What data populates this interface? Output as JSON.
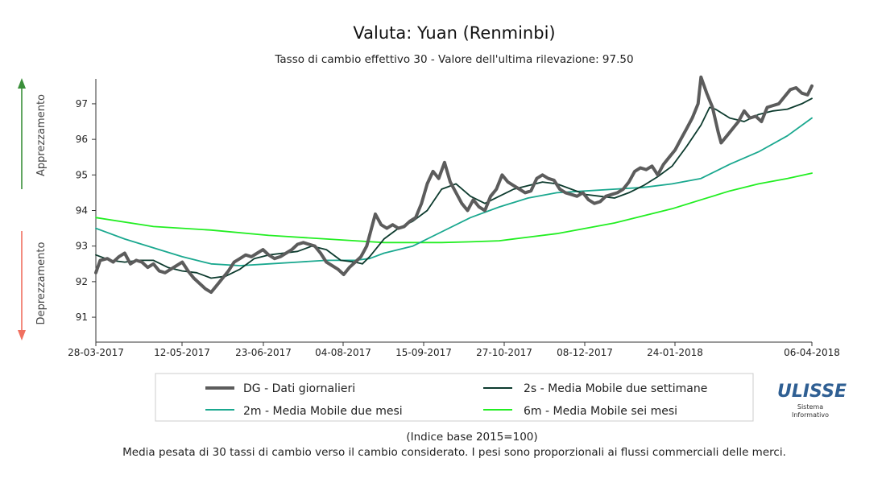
{
  "chart_data": {
    "type": "line",
    "title": "Valuta: Yuan (Renminbi)",
    "subtitle": "Tasso di cambio effettivo 30 - Valore dell'ultima rilevazione: 97.50",
    "ylim": [
      90.3,
      97.7
    ],
    "y_ticks": [
      91,
      92,
      93,
      94,
      95,
      96,
      97
    ],
    "x_tick_labels": [
      "28-03-2017",
      "12-05-2017",
      "23-06-2017",
      "04-08-2017",
      "15-09-2017",
      "27-10-2017",
      "08-12-2017",
      "24-01-2018",
      "06-04-2018"
    ],
    "left_labels": {
      "up": "Apprezzamento",
      "down": "Deprezzamento"
    },
    "colors": {
      "up_arrow": "#3a8f3a",
      "down_arrow": "#f07060"
    },
    "series": [
      {
        "name": "DG - Dati giornalieri",
        "color": "#5c5c5c",
        "points": [
          [
            0,
            92.25
          ],
          [
            3,
            92.6
          ],
          [
            8,
            92.65
          ],
          [
            12,
            92.55
          ],
          [
            16,
            92.7
          ],
          [
            20,
            92.8
          ],
          [
            24,
            92.5
          ],
          [
            28,
            92.6
          ],
          [
            32,
            92.55
          ],
          [
            36,
            92.4
          ],
          [
            40,
            92.5
          ],
          [
            44,
            92.3
          ],
          [
            48,
            92.25
          ],
          [
            52,
            92.35
          ],
          [
            56,
            92.45
          ],
          [
            60,
            92.55
          ],
          [
            64,
            92.3
          ],
          [
            68,
            92.1
          ],
          [
            72,
            91.95
          ],
          [
            76,
            91.8
          ],
          [
            80,
            91.7
          ],
          [
            84,
            91.9
          ],
          [
            88,
            92.1
          ],
          [
            92,
            92.3
          ],
          [
            96,
            92.55
          ],
          [
            100,
            92.65
          ],
          [
            104,
            92.75
          ],
          [
            108,
            92.7
          ],
          [
            112,
            92.8
          ],
          [
            116,
            92.9
          ],
          [
            120,
            92.75
          ],
          [
            124,
            92.65
          ],
          [
            128,
            92.7
          ],
          [
            132,
            92.8
          ],
          [
            136,
            92.9
          ],
          [
            140,
            93.05
          ],
          [
            144,
            93.1
          ],
          [
            148,
            93.05
          ],
          [
            152,
            93.0
          ],
          [
            156,
            92.8
          ],
          [
            160,
            92.55
          ],
          [
            164,
            92.45
          ],
          [
            168,
            92.35
          ],
          [
            172,
            92.2
          ],
          [
            176,
            92.4
          ],
          [
            180,
            92.55
          ],
          [
            184,
            92.7
          ],
          [
            188,
            93.0
          ],
          [
            192,
            93.6
          ],
          [
            194,
            93.9
          ],
          [
            198,
            93.6
          ],
          [
            202,
            93.5
          ],
          [
            206,
            93.6
          ],
          [
            210,
            93.5
          ],
          [
            214,
            93.55
          ],
          [
            218,
            93.7
          ],
          [
            222,
            93.8
          ],
          [
            226,
            94.2
          ],
          [
            230,
            94.75
          ],
          [
            234,
            95.1
          ],
          [
            238,
            94.9
          ],
          [
            242,
            95.35
          ],
          [
            246,
            94.8
          ],
          [
            250,
            94.5
          ],
          [
            254,
            94.2
          ],
          [
            258,
            94.0
          ],
          [
            262,
            94.3
          ],
          [
            266,
            94.1
          ],
          [
            270,
            94.0
          ],
          [
            274,
            94.4
          ],
          [
            278,
            94.6
          ],
          [
            282,
            95.0
          ],
          [
            286,
            94.8
          ],
          [
            290,
            94.7
          ],
          [
            294,
            94.6
          ],
          [
            298,
            94.5
          ],
          [
            302,
            94.55
          ],
          [
            306,
            94.9
          ],
          [
            310,
            95.0
          ],
          [
            314,
            94.9
          ],
          [
            318,
            94.85
          ],
          [
            322,
            94.6
          ],
          [
            326,
            94.5
          ],
          [
            330,
            94.45
          ],
          [
            334,
            94.4
          ],
          [
            338,
            94.5
          ],
          [
            342,
            94.3
          ],
          [
            346,
            94.2
          ],
          [
            350,
            94.25
          ],
          [
            354,
            94.4
          ],
          [
            358,
            94.45
          ],
          [
            362,
            94.5
          ],
          [
            366,
            94.6
          ],
          [
            370,
            94.8
          ],
          [
            374,
            95.1
          ],
          [
            378,
            95.2
          ],
          [
            382,
            95.15
          ],
          [
            386,
            95.25
          ],
          [
            390,
            95.0
          ],
          [
            394,
            95.3
          ],
          [
            398,
            95.5
          ],
          [
            402,
            95.7
          ],
          [
            406,
            96.0
          ],
          [
            410,
            96.3
          ],
          [
            414,
            96.6
          ],
          [
            418,
            97.0
          ],
          [
            420,
            97.75
          ],
          [
            424,
            97.3
          ],
          [
            428,
            96.9
          ],
          [
            432,
            96.2
          ],
          [
            434,
            95.9
          ],
          [
            438,
            96.1
          ],
          [
            442,
            96.3
          ],
          [
            446,
            96.5
          ],
          [
            450,
            96.8
          ],
          [
            454,
            96.6
          ],
          [
            458,
            96.65
          ],
          [
            462,
            96.5
          ],
          [
            466,
            96.9
          ],
          [
            470,
            96.95
          ],
          [
            474,
            97.0
          ],
          [
            478,
            97.2
          ],
          [
            482,
            97.4
          ],
          [
            486,
            97.45
          ],
          [
            490,
            97.3
          ],
          [
            494,
            97.25
          ],
          [
            497,
            97.5
          ]
        ]
      },
      {
        "name": "2s - Media Mobile due settimane",
        "color": "#0d3b2e",
        "points": [
          [
            0,
            92.75
          ],
          [
            10,
            92.6
          ],
          [
            20,
            92.55
          ],
          [
            30,
            92.6
          ],
          [
            40,
            92.6
          ],
          [
            50,
            92.4
          ],
          [
            60,
            92.3
          ],
          [
            70,
            92.25
          ],
          [
            80,
            92.1
          ],
          [
            90,
            92.15
          ],
          [
            100,
            92.35
          ],
          [
            110,
            92.65
          ],
          [
            120,
            92.75
          ],
          [
            130,
            92.8
          ],
          [
            140,
            92.85
          ],
          [
            150,
            93.0
          ],
          [
            160,
            92.9
          ],
          [
            170,
            92.6
          ],
          [
            180,
            92.55
          ],
          [
            185,
            92.5
          ],
          [
            190,
            92.7
          ],
          [
            200,
            93.2
          ],
          [
            210,
            93.5
          ],
          [
            220,
            93.7
          ],
          [
            230,
            94.0
          ],
          [
            240,
            94.6
          ],
          [
            250,
            94.75
          ],
          [
            260,
            94.4
          ],
          [
            270,
            94.2
          ],
          [
            280,
            94.4
          ],
          [
            290,
            94.6
          ],
          [
            300,
            94.7
          ],
          [
            310,
            94.8
          ],
          [
            320,
            94.75
          ],
          [
            330,
            94.6
          ],
          [
            340,
            94.45
          ],
          [
            350,
            94.4
          ],
          [
            360,
            94.35
          ],
          [
            370,
            94.5
          ],
          [
            380,
            94.7
          ],
          [
            390,
            94.95
          ],
          [
            400,
            95.25
          ],
          [
            410,
            95.8
          ],
          [
            420,
            96.4
          ],
          [
            426,
            96.9
          ],
          [
            430,
            96.85
          ],
          [
            440,
            96.6
          ],
          [
            450,
            96.5
          ],
          [
            460,
            96.7
          ],
          [
            470,
            96.8
          ],
          [
            480,
            96.85
          ],
          [
            490,
            97.0
          ],
          [
            497,
            97.15
          ]
        ]
      },
      {
        "name": "2m - Media Mobile due mesi",
        "color": "#1aa88f",
        "points": [
          [
            0,
            93.5
          ],
          [
            20,
            93.2
          ],
          [
            40,
            92.95
          ],
          [
            60,
            92.7
          ],
          [
            80,
            92.5
          ],
          [
            100,
            92.45
          ],
          [
            120,
            92.5
          ],
          [
            140,
            92.55
          ],
          [
            160,
            92.6
          ],
          [
            180,
            92.6
          ],
          [
            190,
            92.65
          ],
          [
            200,
            92.8
          ],
          [
            220,
            93.0
          ],
          [
            240,
            93.4
          ],
          [
            260,
            93.8
          ],
          [
            280,
            94.1
          ],
          [
            300,
            94.35
          ],
          [
            320,
            94.5
          ],
          [
            340,
            94.55
          ],
          [
            360,
            94.6
          ],
          [
            380,
            94.65
          ],
          [
            400,
            94.75
          ],
          [
            420,
            94.9
          ],
          [
            440,
            95.3
          ],
          [
            460,
            95.65
          ],
          [
            480,
            96.1
          ],
          [
            497,
            96.6
          ]
        ]
      },
      {
        "name": "6m - Media Mobile sei mesi",
        "color": "#22ee22",
        "points": [
          [
            0,
            93.8
          ],
          [
            40,
            93.55
          ],
          [
            80,
            93.45
          ],
          [
            120,
            93.3
          ],
          [
            160,
            93.2
          ],
          [
            180,
            93.15
          ],
          [
            200,
            93.1
          ],
          [
            220,
            93.1
          ],
          [
            240,
            93.1
          ],
          [
            260,
            93.12
          ],
          [
            280,
            93.15
          ],
          [
            300,
            93.25
          ],
          [
            320,
            93.35
          ],
          [
            340,
            93.5
          ],
          [
            360,
            93.65
          ],
          [
            380,
            93.85
          ],
          [
            400,
            94.05
          ],
          [
            420,
            94.3
          ],
          [
            440,
            94.55
          ],
          [
            460,
            94.75
          ],
          [
            480,
            94.9
          ],
          [
            497,
            95.05
          ]
        ]
      }
    ],
    "legend": [
      {
        "label": "DG - Dati giornalieri",
        "color": "#5c5c5c"
      },
      {
        "label": "2s - Media Mobile due settimane",
        "color": "#0d3b2e"
      },
      {
        "label": "2m - Media Mobile due mesi",
        "color": "#1aa88f"
      },
      {
        "label": "6m - Media Mobile sei mesi",
        "color": "#22ee22"
      }
    ],
    "footnote": {
      "line1": "(Indice base 2015=100)",
      "line2": "Media pesata di 30 tassi di cambio verso il cambio considerato. I pesi sono proporzionali ai flussi commerciali delle merci."
    },
    "logo": {
      "main": "ULISSE",
      "sub1": "Sistema",
      "sub2": "Informativo"
    }
  }
}
